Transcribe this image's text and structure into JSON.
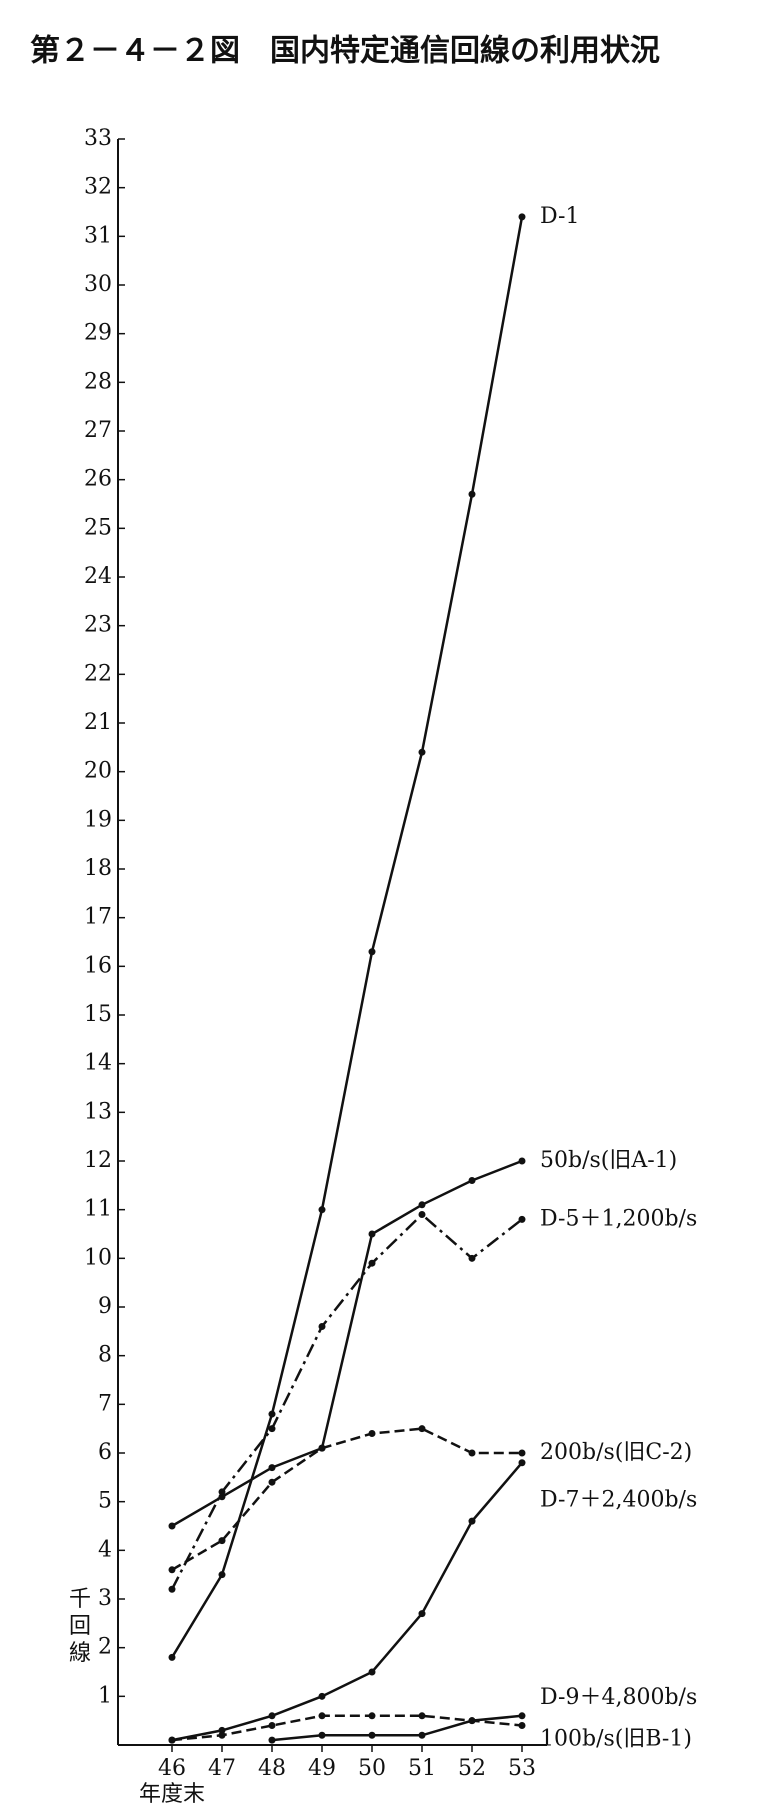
{
  "chart_data": {
    "type": "line",
    "title": "第２－４－２図　国内特定通信回線の利用状況",
    "y_label": "千回線",
    "x_label": "年度末",
    "categories": [
      "46",
      "47",
      "48",
      "49",
      "50",
      "51",
      "52",
      "53"
    ],
    "ylim": [
      0,
      33
    ],
    "yticks": [
      1,
      2,
      3,
      4,
      5,
      6,
      7,
      8,
      9,
      10,
      11,
      12,
      13,
      14,
      15,
      16,
      17,
      18,
      19,
      20,
      21,
      22,
      23,
      24,
      25,
      26,
      27,
      28,
      29,
      30,
      31,
      32,
      33
    ],
    "series": [
      {
        "name": "D-1",
        "color": "#111111",
        "style": "solid",
        "values": [
          1.8,
          3.5,
          6.8,
          11.0,
          16.3,
          20.4,
          25.7,
          31.4
        ]
      },
      {
        "name": "50b/s(旧A-1)",
        "color": "#111111",
        "style": "solid",
        "values": [
          4.5,
          5.1,
          5.7,
          6.1,
          10.5,
          11.1,
          11.6,
          12.0
        ]
      },
      {
        "name": "D-5＋1,200b/s",
        "color": "#111111",
        "style": "dashdot",
        "values": [
          3.2,
          5.2,
          6.5,
          8.6,
          9.9,
          10.9,
          10.0,
          10.8
        ]
      },
      {
        "name": "200b/s(旧C-2)",
        "color": "#111111",
        "style": "dashed",
        "values": [
          3.6,
          4.2,
          5.4,
          6.1,
          6.4,
          6.5,
          6.0,
          6.0
        ]
      },
      {
        "name": "D-7＋2,400b/s",
        "color": "#111111",
        "style": "solid",
        "values": [
          0.1,
          0.3,
          0.6,
          1.0,
          1.5,
          2.7,
          4.6,
          5.8
        ]
      },
      {
        "name": "D-9＋4,800b/s",
        "color": "#111111",
        "style": "solid",
        "values": [
          null,
          null,
          0.1,
          0.2,
          0.2,
          0.2,
          0.5,
          0.6
        ]
      },
      {
        "name": "100b/s(旧B-1)",
        "color": "#111111",
        "style": "dashed",
        "values": [
          0.1,
          0.2,
          0.4,
          0.6,
          0.6,
          0.6,
          0.5,
          0.4
        ]
      }
    ]
  }
}
